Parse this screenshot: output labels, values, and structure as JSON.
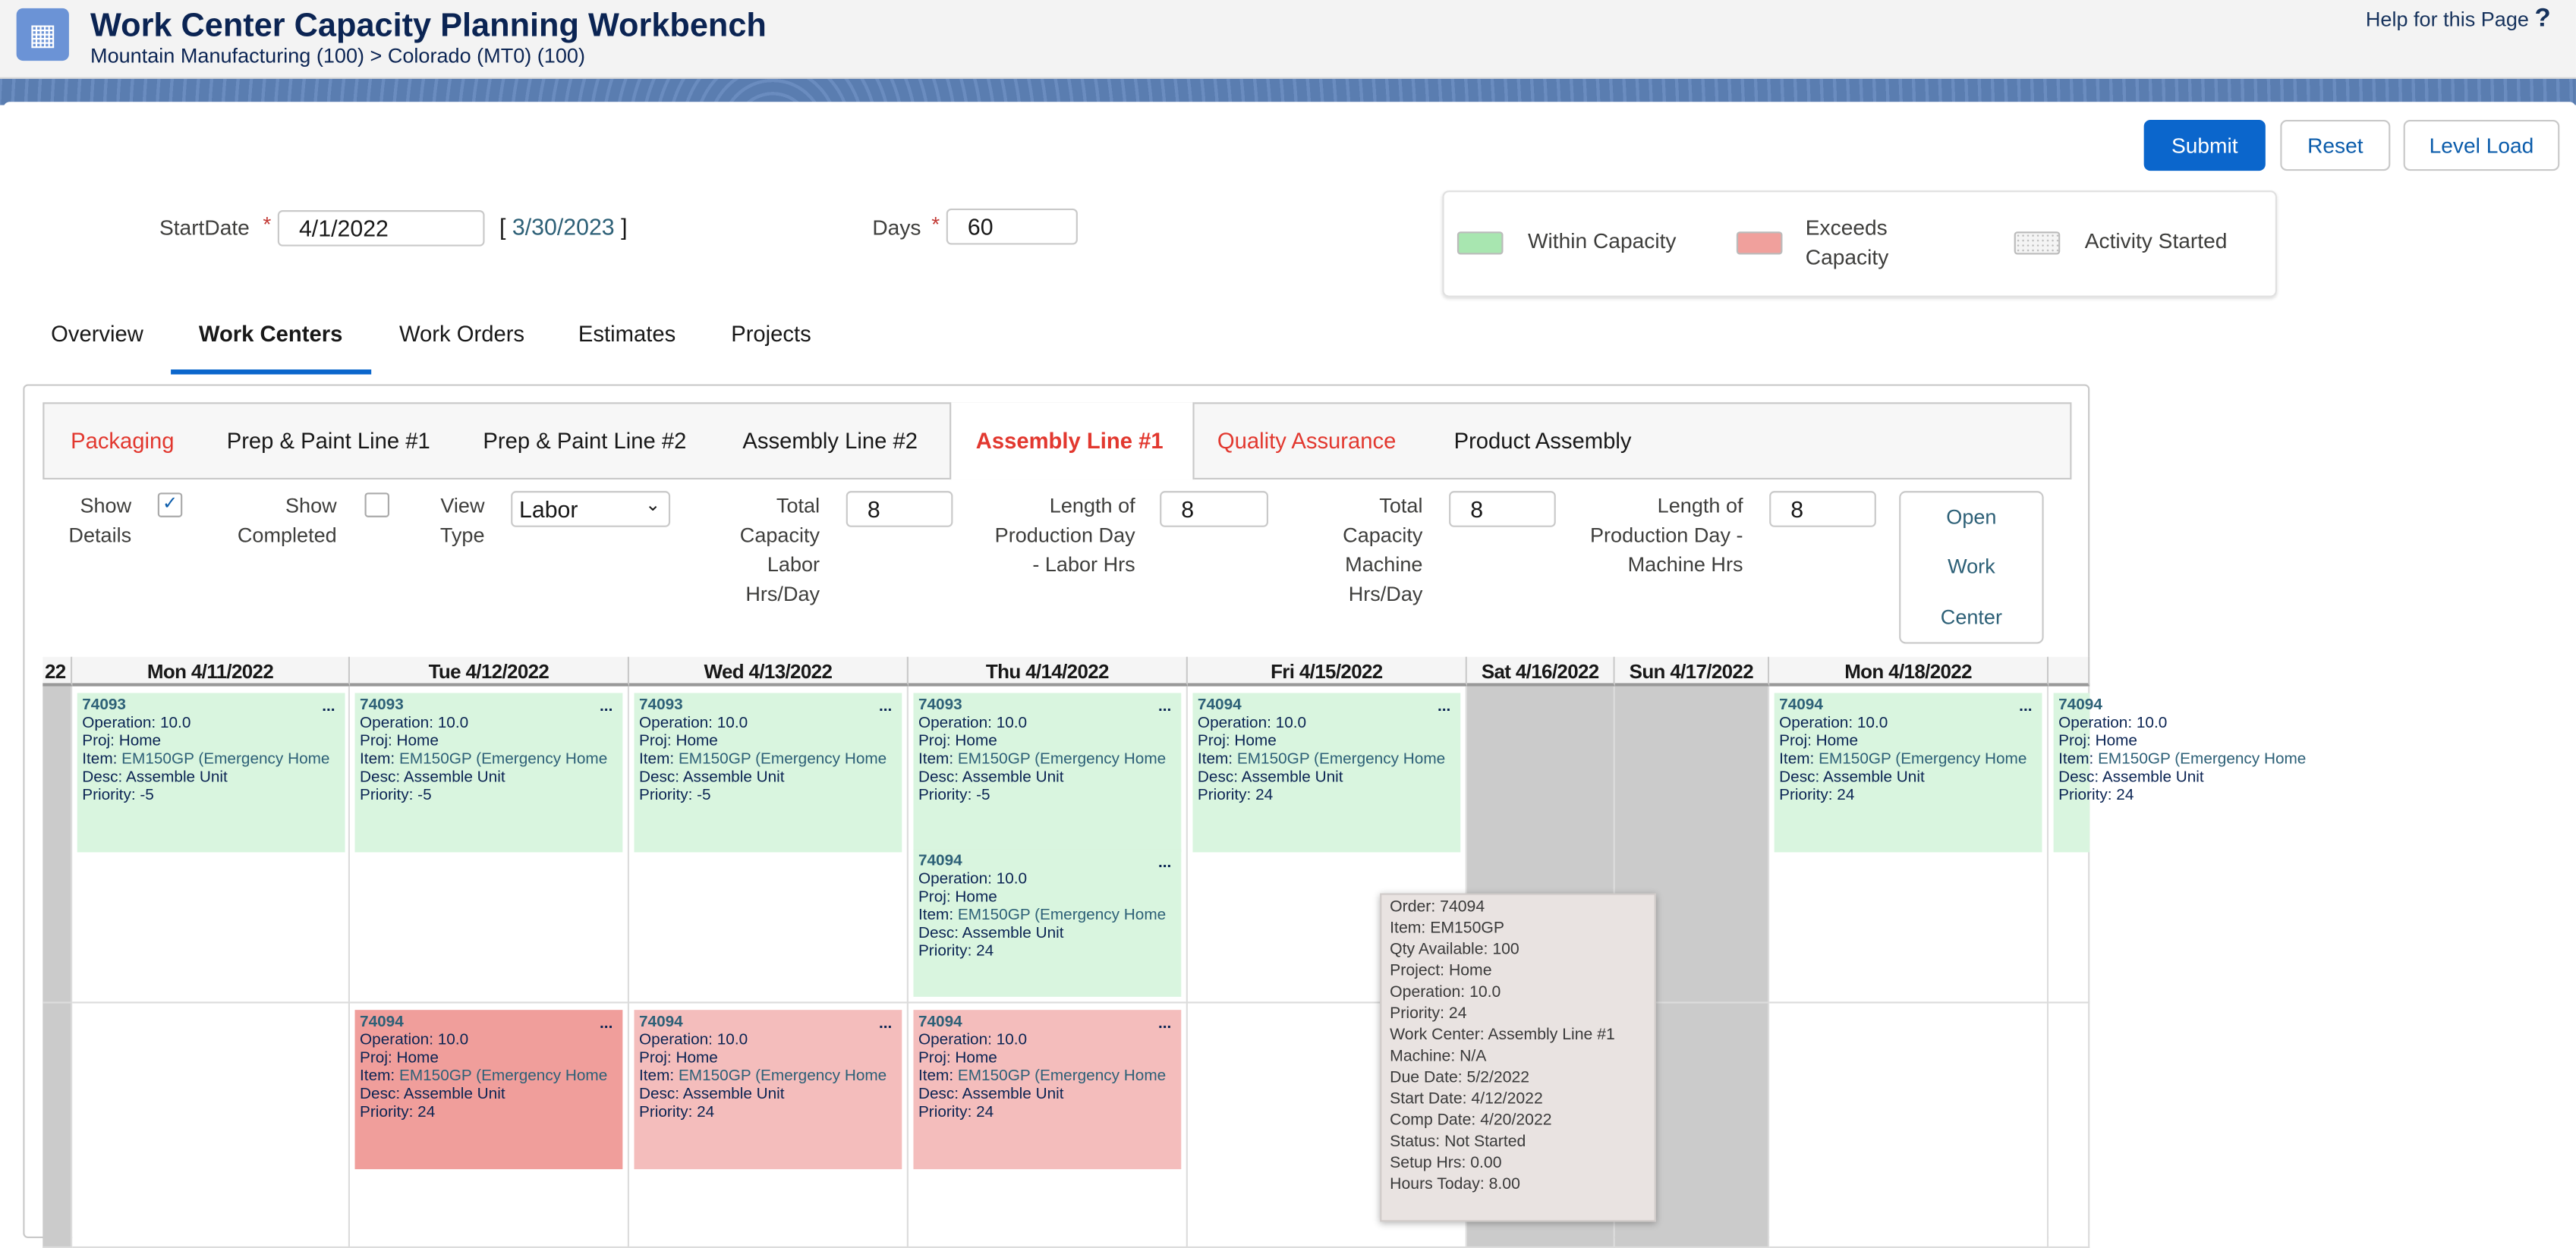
{
  "header": {
    "title": "Work Center Capacity Planning Workbench",
    "breadcrumb": "Mountain Manufacturing (100) > Colorado (MT0) (100)",
    "help": "Help for this Page",
    "help_icon": "?"
  },
  "toolbar": {
    "submit": "Submit",
    "reset": "Reset",
    "level_load": "Level Load"
  },
  "form": {
    "start_label": "StartDate",
    "start_value": "4/1/2022",
    "end_open": "[",
    "end_date": "3/30/2023",
    "end_close": "]",
    "days_label": "Days",
    "days_value": "60",
    "required": "*"
  },
  "legend": {
    "within": "Within Capacity",
    "exceeds_1": "Exceeds",
    "exceeds_2": "Capacity",
    "started": "Activity Started",
    "colors": {
      "within": "#a8e6b0",
      "exceeds": "#f0a09c",
      "started": "#f4f4f4"
    }
  },
  "tabs": [
    "Overview",
    "Work Centers",
    "Work Orders",
    "Estimates",
    "Projects"
  ],
  "active_tab": "Work Centers",
  "work_centers": [
    "Packaging",
    "Prep & Paint Line #1",
    "Prep & Paint Line #2",
    "Assembly Line #2",
    "Assembly Line #1",
    "Quality Assurance",
    "Product Assembly"
  ],
  "active_work_center": "Assembly Line #1",
  "filters": {
    "show_details": [
      "Show",
      "Details"
    ],
    "show_details_checked": true,
    "show_completed": [
      "Show",
      "Completed"
    ],
    "show_completed_checked": false,
    "view_type": [
      "View",
      "Type"
    ],
    "view_type_value": "Labor",
    "total_labor": [
      "Total",
      "Capacity",
      "Labor",
      "Hrs/Day"
    ],
    "total_labor_value": "8",
    "len_labor": [
      "Length of",
      "Production Day",
      "- Labor Hrs"
    ],
    "len_labor_value": "8",
    "total_machine": [
      "Total",
      "Capacity",
      "Machine",
      "Hrs/Day"
    ],
    "total_machine_value": "8",
    "len_machine": [
      "Length of",
      "Production Day -",
      "Machine Hrs"
    ],
    "len_machine_value": "8",
    "open_wc": [
      "Open",
      "Work",
      "Center"
    ]
  },
  "calendar": {
    "columns": [
      "22",
      "Mon 4/11/2022",
      "Tue 4/12/2022",
      "Wed 4/13/2022",
      "Thu 4/14/2022",
      "Fri 4/15/2022",
      "Sat 4/16/2022",
      "Sun 4/17/2022",
      "Mon 4/18/2022",
      ""
    ],
    "cards": [
      {
        "col": 1,
        "row": 0,
        "slot": 0,
        "status": "within",
        "order": "74093",
        "op": "Operation: 10.0",
        "proj": "Proj: Home",
        "item_label": "Item: ",
        "item": "EM150GP (Emergency Home",
        "desc": "Desc: Assemble Unit",
        "priority": "Priority: -5"
      },
      {
        "col": 2,
        "row": 0,
        "slot": 0,
        "status": "within",
        "order": "74093",
        "op": "Operation: 10.0",
        "proj": "Proj: Home",
        "item_label": "Item: ",
        "item": "EM150GP (Emergency Home",
        "desc": "Desc: Assemble Unit",
        "priority": "Priority: -5"
      },
      {
        "col": 3,
        "row": 0,
        "slot": 0,
        "status": "within",
        "order": "74093",
        "op": "Operation: 10.0",
        "proj": "Proj: Home",
        "item_label": "Item: ",
        "item": "EM150GP (Emergency Home",
        "desc": "Desc: Assemble Unit",
        "priority": "Priority: -5"
      },
      {
        "col": 4,
        "row": 0,
        "slot": 0,
        "status": "within",
        "order": "74093",
        "op": "Operation: 10.0",
        "proj": "Proj: Home",
        "item_label": "Item: ",
        "item": "EM150GP (Emergency Home",
        "desc": "Desc: Assemble Unit",
        "priority": "Priority: -5"
      },
      {
        "col": 4,
        "row": 0,
        "slot": 1,
        "status": "within",
        "order": "74094",
        "op": "Operation: 10.0",
        "proj": "Proj: Home",
        "item_label": "Item: ",
        "item": "EM150GP (Emergency Home",
        "desc": "Desc: Assemble Unit",
        "priority": "Priority: 24"
      },
      {
        "col": 5,
        "row": 0,
        "slot": 0,
        "status": "within",
        "order": "74094",
        "op": "Operation: 10.0",
        "proj": "Proj: Home",
        "item_label": "Item: ",
        "item": "EM150GP (Emergency Home",
        "desc": "Desc: Assemble Unit",
        "priority": "Priority: 24"
      },
      {
        "col": 8,
        "row": 0,
        "slot": 0,
        "status": "within",
        "order": "74094",
        "op": "Operation: 10.0",
        "proj": "Proj: Home",
        "item_label": "Item: ",
        "item": "EM150GP (Emergency Home",
        "desc": "Desc: Assemble Unit",
        "priority": "Priority: 24"
      },
      {
        "col": 9,
        "row": 0,
        "slot": 0,
        "status": "within",
        "order": "74094",
        "op": "Operation: 10.0",
        "proj": "Proj: Home",
        "item_label": "Item: ",
        "item": "EM150GP (Emergency Home",
        "desc": "Desc: Assemble Unit",
        "priority": "Priority: 24"
      },
      {
        "col": 2,
        "row": 1,
        "slot": 0,
        "status": "exceeds-dark",
        "order": "74094",
        "op": "Operation: 10.0",
        "proj": "Proj: Home",
        "item_label": "Item: ",
        "item": "EM150GP (Emergency Home",
        "desc": "Desc: Assemble Unit",
        "priority": "Priority: 24"
      },
      {
        "col": 3,
        "row": 1,
        "slot": 0,
        "status": "exceeds",
        "order": "74094",
        "op": "Operation: 10.0",
        "proj": "Proj: Home",
        "item_label": "Item: ",
        "item": "EM150GP (Emergency Home",
        "desc": "Desc: Assemble Unit",
        "priority": "Priority: 24"
      },
      {
        "col": 4,
        "row": 1,
        "slot": 0,
        "status": "exceeds",
        "order": "74094",
        "op": "Operation: 10.0",
        "proj": "Proj: Home",
        "item_label": "Item: ",
        "item": "EM150GP (Emergency Home",
        "desc": "Desc: Assemble Unit",
        "priority": "Priority: 24"
      }
    ],
    "card_menu": "...",
    "status_colors": {
      "within": "#d9f5df",
      "exceeds": "#f4bdbc",
      "exceeds-dark": "#f09e9b",
      "weekend": "#cbcbcb"
    }
  },
  "tooltip": [
    "Order: 74094",
    "Item: EM150GP",
    "Qty Available: 100",
    "Project: Home",
    "Operation: 10.0",
    "Priority: 24",
    "Work Center: Assembly Line #1",
    "Machine: N/A",
    "Due Date: 5/2/2022",
    "Start Date: 4/12/2022",
    "Comp Date: 4/20/2022",
    "Status: Not Started",
    "Setup Hrs: 0.00",
    "Hours Today: 8.00"
  ]
}
